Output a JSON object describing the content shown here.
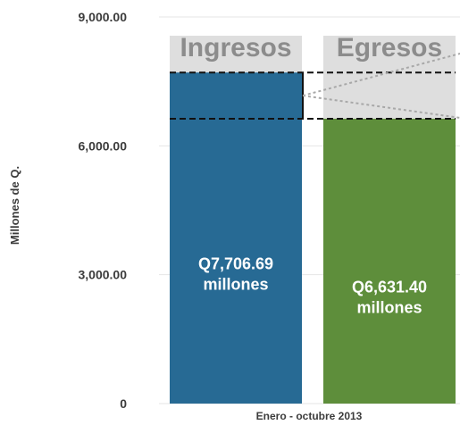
{
  "chart_data": {
    "type": "bar",
    "title": "",
    "ylabel": "Millones de Q.",
    "xlabel": "Enero - octubre 2013",
    "ylim": [
      0,
      9000
    ],
    "yticks": [
      {
        "value": 0,
        "label": "0"
      },
      {
        "value": 3000,
        "label": "3,000.00"
      },
      {
        "value": 6000,
        "label": "6,000.00"
      },
      {
        "value": 9000,
        "label": "9,000.00"
      }
    ],
    "categories": [
      "Ingresos",
      "Egresos"
    ],
    "values": [
      7706.69,
      6631.4
    ],
    "data_labels": [
      {
        "line1": "Q7,706.69",
        "line2": "millones"
      },
      {
        "line1": "Q6,631.40",
        "line2": "millones"
      }
    ],
    "colors": {
      "Ingresos": "#276a94",
      "Egresos": "#5e8e3b",
      "category_band": "#dedede",
      "gridline": "#e6e6e6"
    },
    "grid": true
  }
}
